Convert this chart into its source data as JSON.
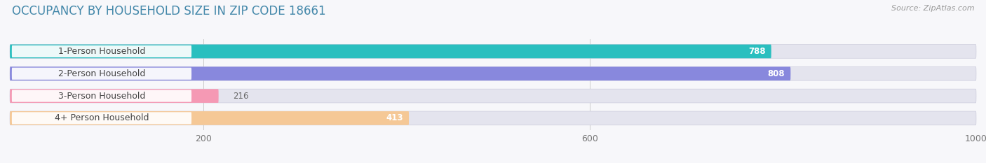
{
  "title": "OCCUPANCY BY HOUSEHOLD SIZE IN ZIP CODE 18661",
  "source": "Source: ZipAtlas.com",
  "categories": [
    "1-Person Household",
    "2-Person Household",
    "3-Person Household",
    "4+ Person Household"
  ],
  "values": [
    788,
    808,
    216,
    413
  ],
  "bar_colors": [
    "#2abfbf",
    "#8888dd",
    "#f599b4",
    "#f5c896"
  ],
  "background_bar_color": "#e4e4ee",
  "label_bg_color": "#ffffff",
  "xlim": [
    0,
    1000
  ],
  "xticks": [
    200,
    600,
    1000
  ],
  "title_fontsize": 12,
  "label_fontsize": 9,
  "value_fontsize": 8.5,
  "source_fontsize": 8,
  "bar_height": 0.62,
  "fig_bg": "#f7f7fa",
  "title_color": "#4488aa",
  "text_color": "#444444",
  "source_color": "#999999",
  "value_inside_color": "#ffffff",
  "value_outside_color": "#666666"
}
